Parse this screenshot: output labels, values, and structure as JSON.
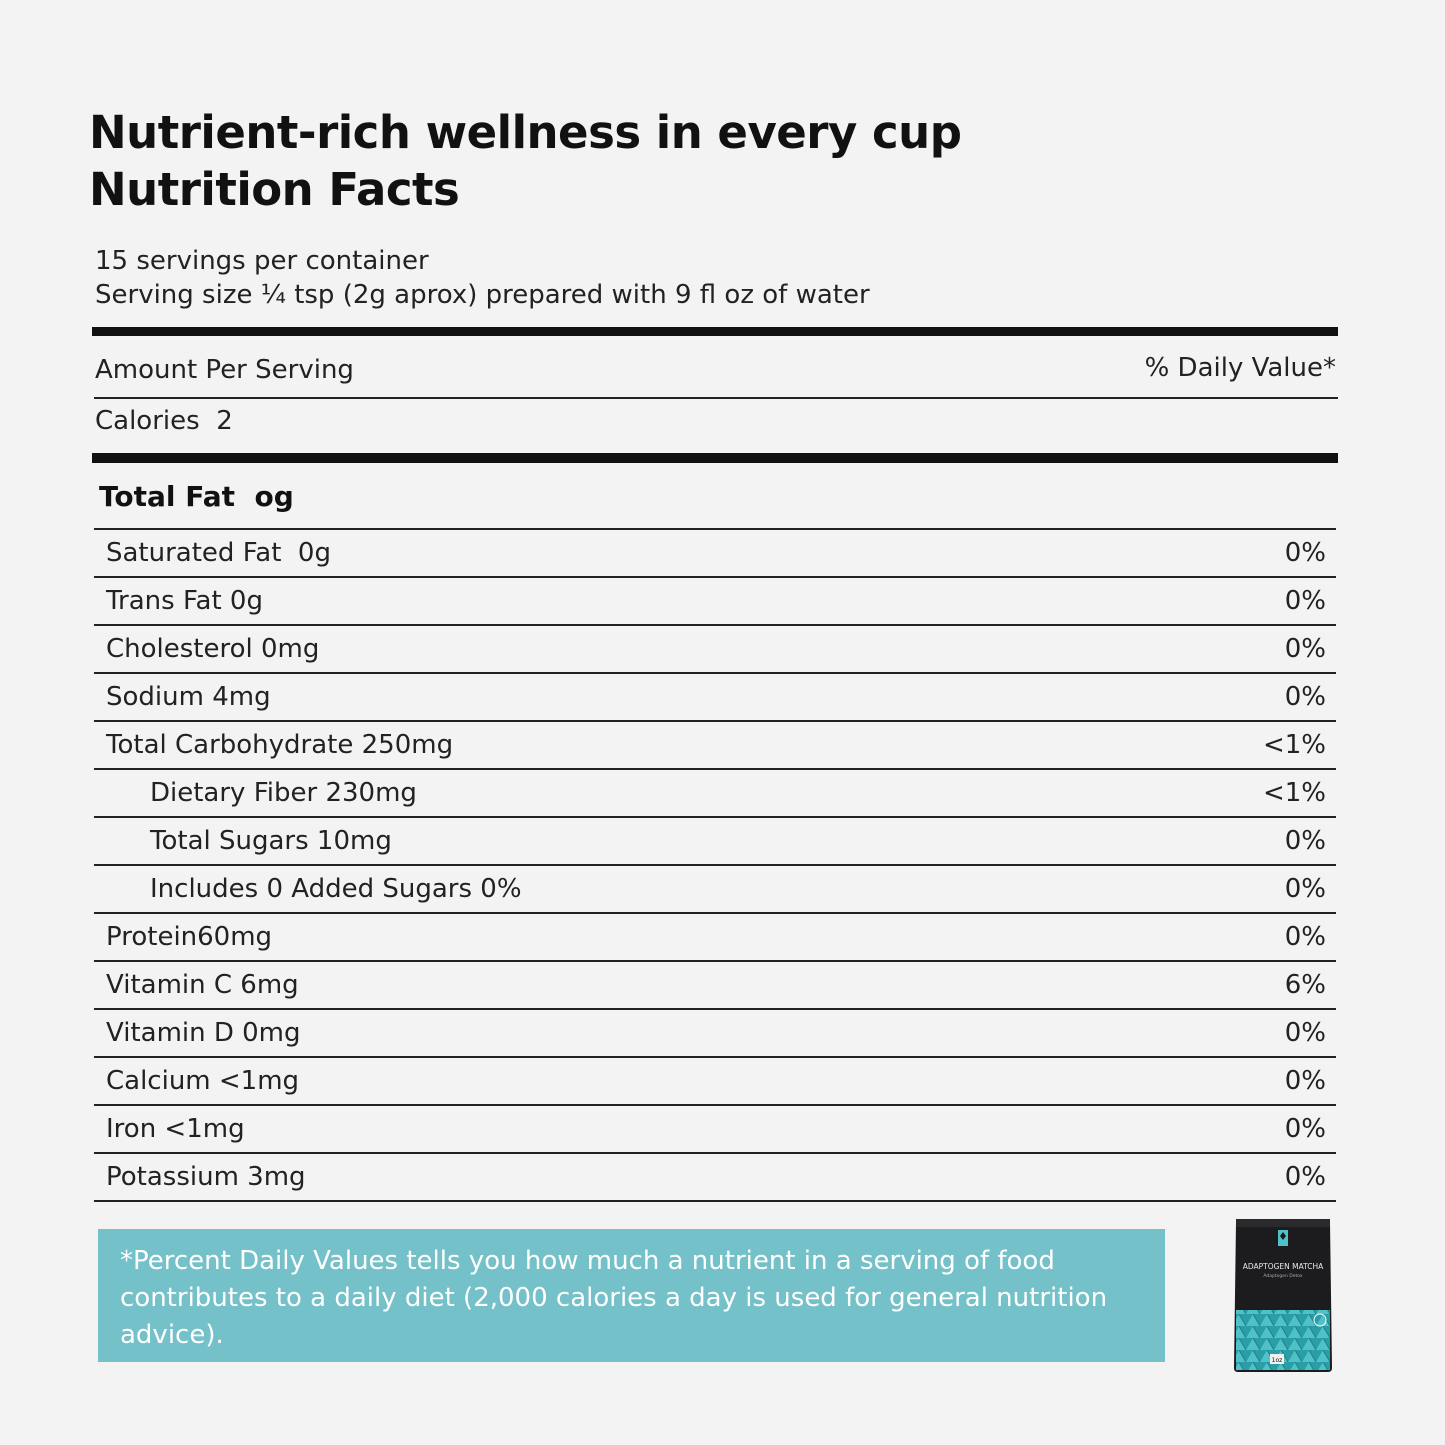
{
  "header": {
    "title_line1": "Nutrient-rich wellness in every cup",
    "title_line2": "Nutrition Facts"
  },
  "serving": {
    "servings_per_container": "15 servings per container",
    "serving_size": "Serving size ¼ tsp (2g aprox) prepared with 9 fl oz of water"
  },
  "labels": {
    "amount_per_serving": "Amount Per Serving",
    "daily_value": "% Daily Value*",
    "calories": "Calories  2",
    "total_fat": "Total Fat  og"
  },
  "nutrients": [
    {
      "name": "Saturated Fat  0g",
      "dv": "0%"
    },
    {
      "name": "Trans Fat 0g",
      "dv": "0%"
    },
    {
      "name": "Cholesterol 0mg",
      "dv": "0%"
    },
    {
      "name": "Sodium 4mg",
      "dv": "0%"
    },
    {
      "name": "Total Carbohydrate 250mg",
      "dv": "<1%"
    },
    {
      "name": "Dietary Fiber 230mg",
      "dv": "<1%"
    },
    {
      "name": "Total Sugars 10mg",
      "dv": "0%"
    },
    {
      "name": "Includes 0 Added Sugars 0%",
      "dv": "0%"
    },
    {
      "name": "Protein60mg",
      "dv": "0%"
    },
    {
      "name": "Vitamin C 6mg",
      "dv": "6%"
    },
    {
      "name": "Vitamin D 0mg",
      "dv": "0%"
    },
    {
      "name": "Calcium <1mg",
      "dv": "0%"
    },
    {
      "name": "Iron <1mg",
      "dv": "0%"
    },
    {
      "name": "Potassium 3mg",
      "dv": "0%"
    }
  ],
  "footnote": "*Percent Daily Values tells  you how much a nutrient in a serving of food contributes to a daily diet (2,000 calories a day is used for general nutrition advice).",
  "product": {
    "name": "ADAPTOGEN MATCHA",
    "subtitle": "Adaptogen Detox",
    "size": "1oz"
  },
  "colors": {
    "accent": "#74c1c9",
    "pouch": "#1c1c1e"
  }
}
